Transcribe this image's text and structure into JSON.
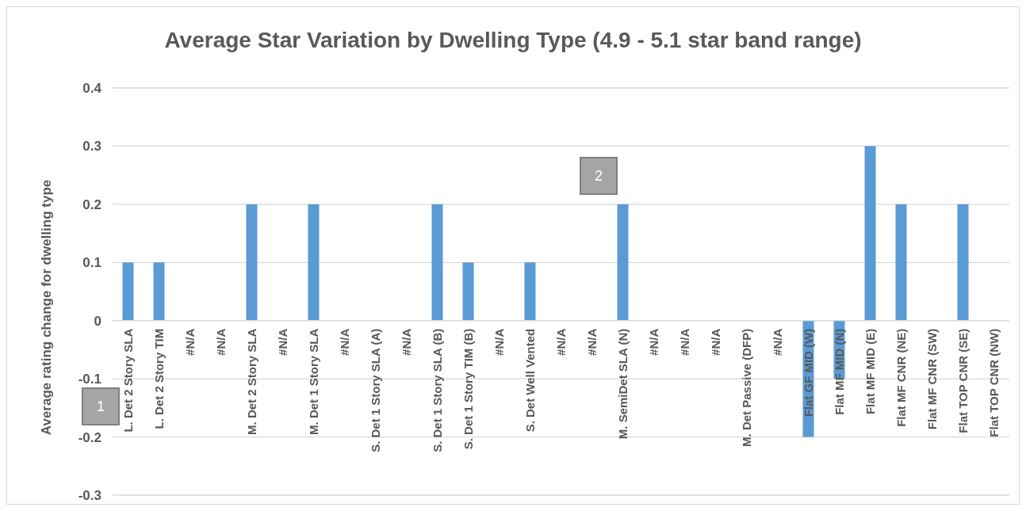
{
  "chart_data": {
    "type": "bar",
    "title": "Average Star Variation by Dwelling Type (4.9 - 5.1 star band range)",
    "ylabel": "Average rating change for dwelling type",
    "categories": [
      "L. Det 2 Story SLA",
      "L. Det 2 Story TIM",
      "#N/A",
      "#N/A",
      "M. Det 2 Story SLA",
      "#N/A",
      "M. Det 1 Story SLA",
      "#N/A",
      "S. Det 1 Story SLA (A)",
      "#N/A",
      "S. Det 1 Story SLA (B)",
      "S. Det 1 Story TIM (B)",
      "#N/A",
      "S. Det Well Vented",
      "#N/A",
      "#N/A",
      "M. SemiDet SLA (N)",
      "#N/A",
      "#N/A",
      "#N/A",
      "M. Det Passive (DFP)",
      "#N/A",
      "Flat GF MID (W)",
      "Flat MF MID (N)",
      "Flat MF MID (E)",
      "Flat MF CNR (NE)",
      "Flat MF CNR (SW)",
      "Flat TOP CNR (SE)",
      "Flat TOP CNR (NW)"
    ],
    "values": [
      0.1,
      0.1,
      0,
      0,
      0.2,
      0,
      0.2,
      0,
      0,
      0,
      0.2,
      0.1,
      0,
      0.1,
      0,
      0,
      0.2,
      0,
      0,
      0,
      0,
      0,
      -0.2,
      -0.1,
      0.3,
      0.2,
      0,
      0.2,
      0
    ],
    "color": "#5b9bd5",
    "ylim": [
      -0.3,
      0.4
    ],
    "yticks": [
      -0.3,
      -0.2,
      -0.1,
      0,
      0.1,
      0.2,
      0.3,
      0.4
    ],
    "grid": true,
    "annotations": [
      "1",
      "2"
    ]
  }
}
